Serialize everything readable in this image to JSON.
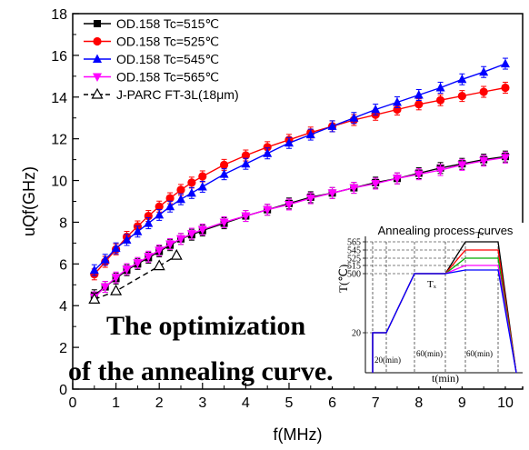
{
  "chart_data": [
    {
      "type": "line",
      "xlabel": "f(MHz)",
      "ylabel": "uQf(GHz)",
      "xlim": [
        0,
        10.4
      ],
      "ylim": [
        0,
        18
      ],
      "x_ticks": [
        0,
        1,
        2,
        3,
        4,
        5,
        6,
        7,
        8,
        9,
        10
      ],
      "y_ticks": [
        0,
        2,
        4,
        6,
        8,
        10,
        12,
        14,
        16,
        18
      ],
      "legend_position": "top-left",
      "series": [
        {
          "name": "OD.158 Tc=515℃",
          "color": "#000000",
          "marker": "square",
          "x": [
            0.5,
            0.75,
            1.0,
            1.25,
            1.5,
            1.75,
            2.0,
            2.25,
            2.5,
            2.75,
            3.0,
            3.5,
            4.0,
            4.5,
            5.0,
            5.5,
            6.0,
            6.5,
            7.0,
            7.5,
            8.0,
            8.5,
            9.0,
            9.5,
            10.0
          ],
          "y": [
            4.5,
            4.9,
            5.3,
            5.7,
            6.0,
            6.3,
            6.6,
            6.9,
            7.2,
            7.4,
            7.6,
            7.95,
            8.3,
            8.6,
            8.9,
            9.2,
            9.4,
            9.65,
            9.9,
            10.1,
            10.35,
            10.6,
            10.8,
            11.0,
            11.15
          ]
        },
        {
          "name": "OD.158 Tc=525℃",
          "color": "#ff0000",
          "marker": "circle",
          "x": [
            0.5,
            0.75,
            1.0,
            1.25,
            1.5,
            1.75,
            2.0,
            2.25,
            2.5,
            2.75,
            3.0,
            3.5,
            4.0,
            4.5,
            5.0,
            5.5,
            6.0,
            6.5,
            7.0,
            7.5,
            8.0,
            8.5,
            9.0,
            9.5,
            10.0
          ],
          "y": [
            5.5,
            6.1,
            6.7,
            7.3,
            7.8,
            8.3,
            8.75,
            9.15,
            9.55,
            9.9,
            10.2,
            10.75,
            11.2,
            11.6,
            11.95,
            12.3,
            12.6,
            12.9,
            13.15,
            13.4,
            13.65,
            13.85,
            14.05,
            14.25,
            14.45
          ]
        },
        {
          "name": "OD.158 Tc=545℃",
          "color": "#0000ff",
          "marker": "triangle-up",
          "x": [
            0.5,
            0.75,
            1.0,
            1.25,
            1.5,
            1.75,
            2.0,
            2.25,
            2.5,
            2.75,
            3.0,
            3.5,
            4.0,
            4.5,
            5.0,
            5.5,
            6.0,
            6.5,
            7.0,
            7.5,
            8.0,
            8.5,
            9.0,
            9.5,
            10.0
          ],
          "y": [
            5.7,
            6.2,
            6.75,
            7.15,
            7.55,
            7.95,
            8.35,
            8.75,
            9.1,
            9.4,
            9.7,
            10.3,
            10.8,
            11.3,
            11.8,
            12.2,
            12.6,
            13.0,
            13.4,
            13.75,
            14.1,
            14.45,
            14.85,
            15.2,
            15.6
          ]
        },
        {
          "name": "OD.158 Tc=565℃",
          "color": "#ff00ff",
          "marker": "triangle-down",
          "x": [
            0.5,
            0.75,
            1.0,
            1.25,
            1.5,
            1.75,
            2.0,
            2.25,
            2.5,
            2.75,
            3.0,
            3.5,
            4.0,
            4.5,
            5.0,
            5.5,
            6.0,
            6.5,
            7.0,
            7.5,
            8.0,
            8.5,
            9.0,
            9.5,
            10.0
          ],
          "y": [
            4.4,
            4.9,
            5.35,
            5.75,
            6.05,
            6.35,
            6.65,
            6.95,
            7.2,
            7.45,
            7.65,
            8.0,
            8.3,
            8.6,
            8.85,
            9.15,
            9.4,
            9.65,
            9.85,
            10.1,
            10.3,
            10.5,
            10.75,
            10.95,
            11.1
          ]
        },
        {
          "name": "J-PARC FT-3L(18μm)",
          "color": "#000000",
          "marker": "triangle-up-open",
          "line": "dashed",
          "x": [
            0.5,
            1.0,
            2.0,
            2.4
          ],
          "y": [
            4.3,
            4.7,
            5.9,
            6.4
          ]
        }
      ]
    },
    {
      "type": "line",
      "title": "Annealing process curves",
      "xlabel": "t(min)",
      "ylabel": "T(℃)",
      "y_tick_labels": [
        "565",
        "545",
        "525",
        "515",
        "500",
        "20"
      ],
      "annotations": [
        "Tₓ",
        "Tᶜ",
        "20(min)",
        "60(min)",
        "60(min)"
      ],
      "series_colors": [
        "#000000",
        "#ff0000",
        "#00aa00",
        "#ff00ff",
        "#0000ff"
      ]
    }
  ],
  "overlay": {
    "line1": "The optimization",
    "line2": "of the annealing curve."
  }
}
